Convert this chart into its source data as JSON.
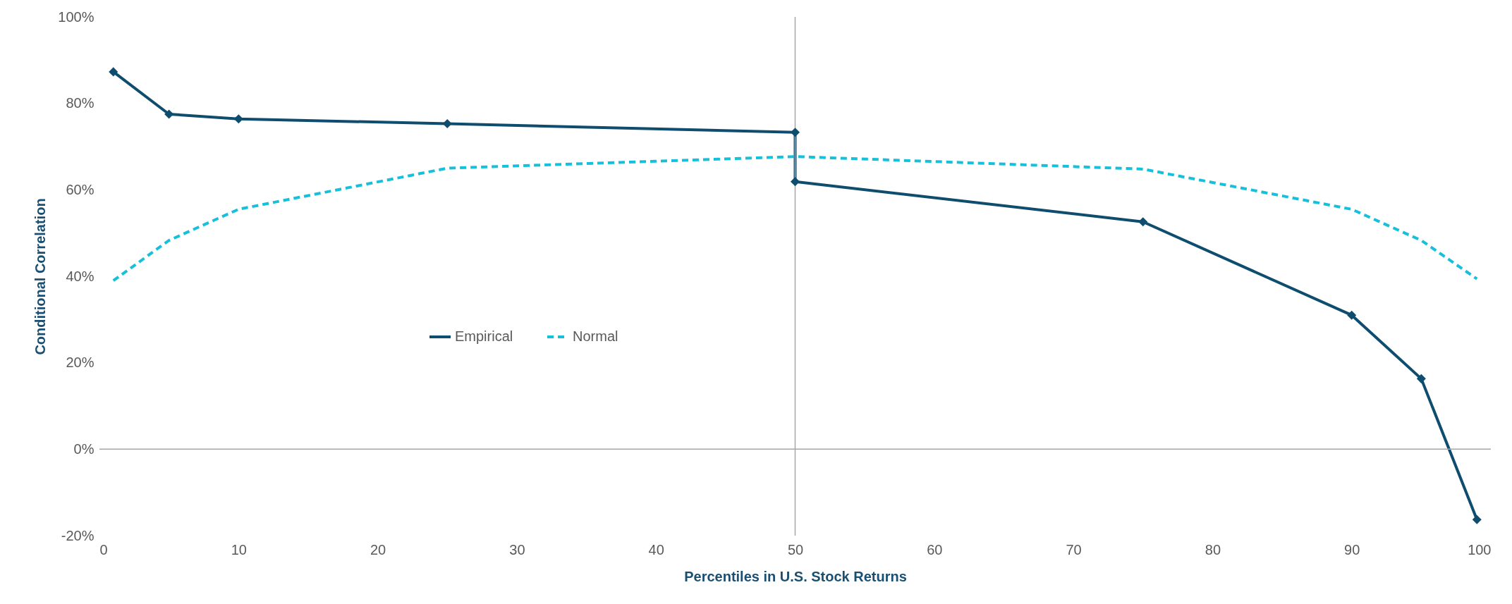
{
  "chart_data": {
    "type": "line",
    "xlabel": "Percentiles in U.S. Stock Returns",
    "ylabel": "Conditional Correlation",
    "xlim": [
      0,
      100
    ],
    "xticks": [
      0,
      10,
      20,
      30,
      40,
      50,
      60,
      70,
      80,
      90,
      100
    ],
    "ylim": [
      -20,
      100
    ],
    "yticks": [
      {
        "value": -20,
        "label": "-20%"
      },
      {
        "value": 0,
        "label": "0%"
      },
      {
        "value": 20,
        "label": "20%"
      },
      {
        "value": 40,
        "label": "40%"
      },
      {
        "value": 60,
        "label": "60%"
      },
      {
        "value": 80,
        "label": "80%"
      },
      {
        "value": 100,
        "label": "100%"
      }
    ],
    "grid": false,
    "legend": "left",
    "ref_lines": [
      {
        "axis": "y",
        "value": 0,
        "color": "#a6a6a6"
      },
      {
        "axis": "x",
        "value": 50,
        "color": "#a6a6a6"
      }
    ],
    "series": [
      {
        "name": "Empirical",
        "color": "#0f4d6e",
        "marker": "diamond",
        "line_style": "solid",
        "x": [
          1,
          5,
          10,
          25,
          50,
          50,
          75,
          90,
          95,
          99
        ],
        "values": [
          87.3,
          77.5,
          76.4,
          75.3,
          73.3,
          61.9,
          52.6,
          31,
          16.3,
          -16.3
        ]
      },
      {
        "name": "Normal",
        "color": "#17c0da",
        "marker": "none",
        "line_style": "dashed",
        "x": [
          1,
          5,
          10,
          25,
          50,
          75,
          90,
          95,
          99
        ],
        "values": [
          39,
          48.3,
          55.5,
          65,
          67.7,
          64.8,
          55.5,
          48.3,
          39.4
        ]
      }
    ]
  }
}
